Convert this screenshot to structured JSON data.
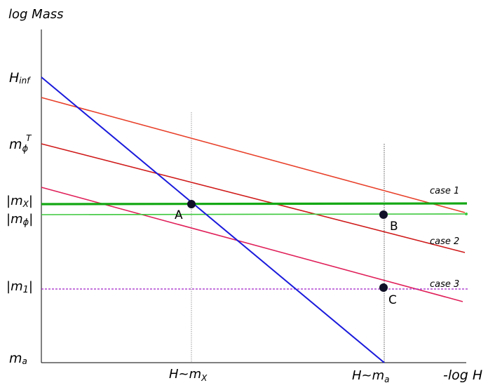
{
  "y_axis_title": "log Mass",
  "x_axis_title": "-log H",
  "y_labels": {
    "h_inf": {
      "base": "H",
      "sub": "inf"
    },
    "m_phi_T": {
      "base": "m",
      "sub": "ϕ",
      "sup": "T"
    },
    "m_x": {
      "pre": "|m",
      "sub": "X",
      "post": "|"
    },
    "m_phi": {
      "pre": "|m",
      "sub": "ϕ",
      "post": "|"
    },
    "m_1": {
      "pre": "|m",
      "sub": "1",
      "post": "|"
    },
    "m_a": {
      "base": "m",
      "sub": "a"
    }
  },
  "x_labels": {
    "h_mx": {
      "base": "H~m",
      "sub": "X"
    },
    "h_ma": {
      "base": "H~m",
      "sub": "a"
    }
  },
  "case_labels": {
    "case1": "case 1",
    "case2": "case 2",
    "case3": "case 3"
  },
  "points": {
    "A": "A",
    "B": "B",
    "C": "C"
  },
  "colors": {
    "blue_line": "#1a1adc",
    "red_line_1": "#e8402a",
    "red_line_2": "#d01a1a",
    "red_line_3": "#e0205a",
    "green_thick": "#14a814",
    "green_thin": "#3cc83c",
    "purple_dashed": "#a020c8",
    "dots": "#101028"
  }
}
